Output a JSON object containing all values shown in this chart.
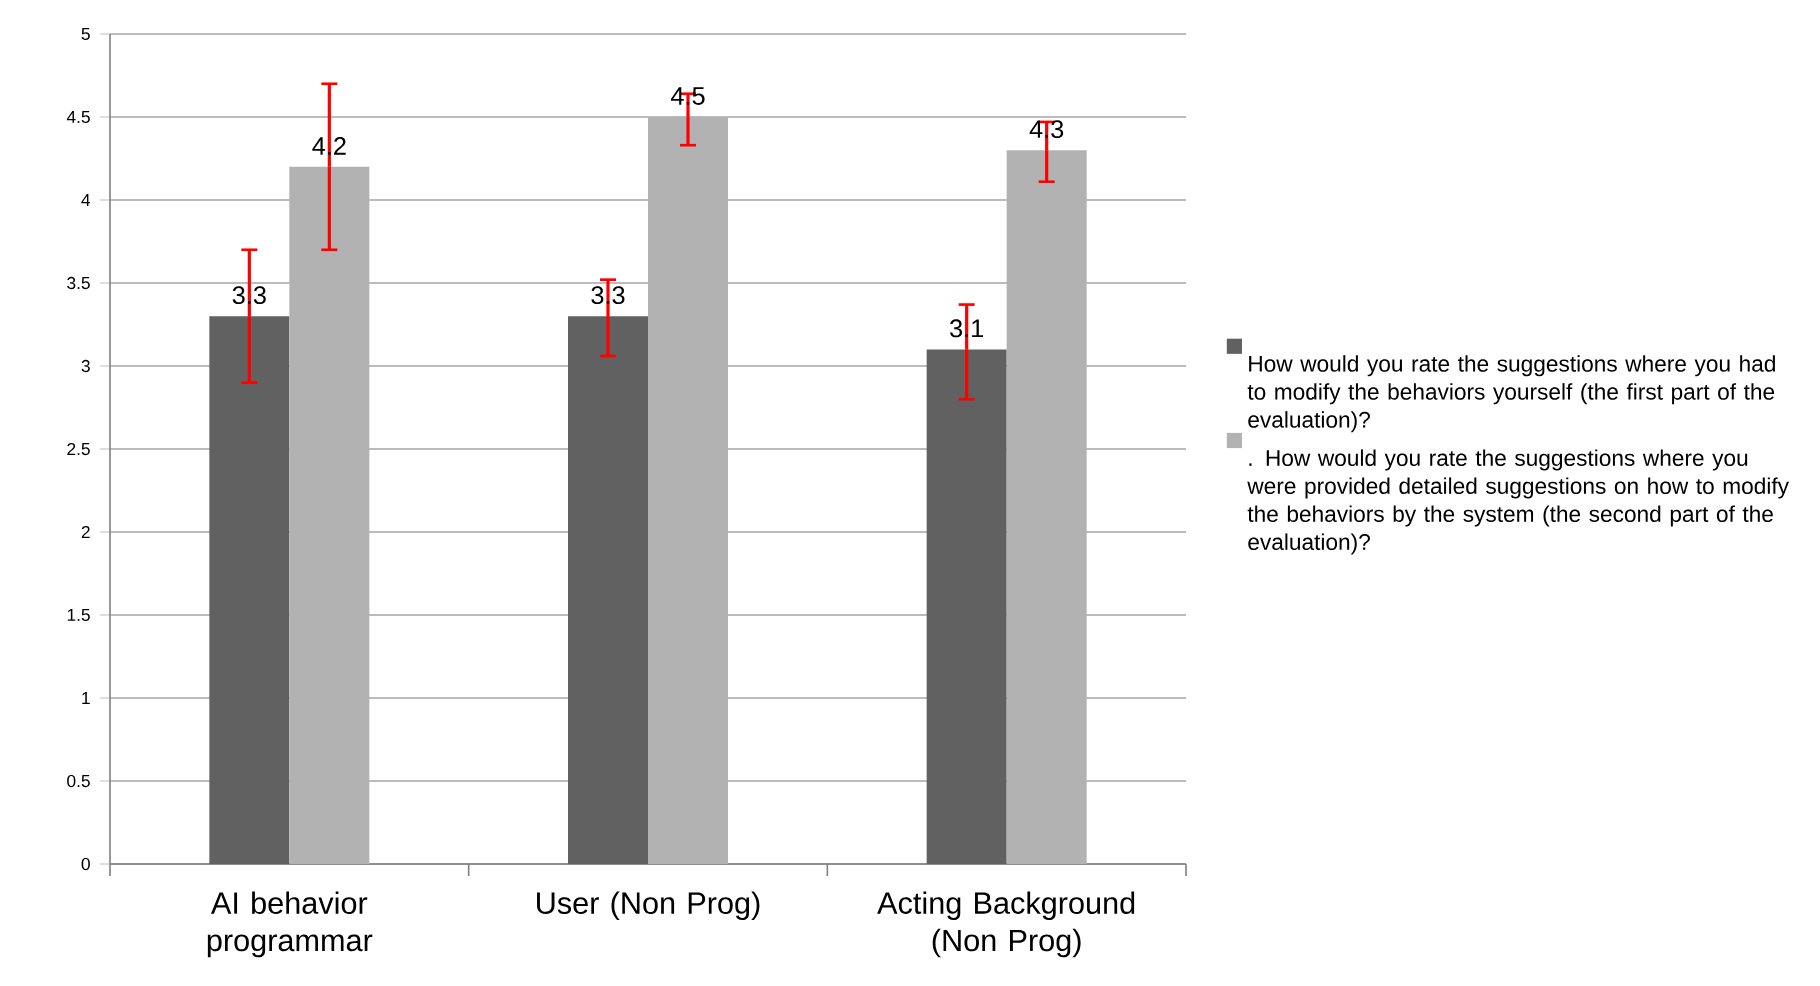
{
  "chart_data": {
    "type": "bar",
    "categories": [
      "AI behavior programmar",
      "User (Non Prog)",
      "Acting Background (Non Prog)"
    ],
    "series": [
      {
        "name": "How would you rate the suggestions where you had to modify the behaviors yourself (the first part of the evaluation)?",
        "color": "#616161",
        "values": [
          3.3,
          3.3,
          3.1
        ],
        "errors": [
          [
            2.9,
            3.7
          ],
          [
            3.06,
            3.52
          ],
          [
            2.8,
            3.37
          ]
        ]
      },
      {
        "name": ". How would you rate the suggestions where you were provided detailed suggestions on how to modify the behaviors by the system (the second part of the evaluation)?",
        "color": "#b2b2b2",
        "values": [
          4.2,
          4.5,
          4.3
        ],
        "errors": [
          [
            3.7,
            4.7
          ],
          [
            4.33,
            4.64
          ],
          [
            4.11,
            4.47
          ]
        ]
      }
    ],
    "ylim": [
      0,
      5
    ],
    "yticks": [
      0,
      0.5,
      1,
      1.5,
      2,
      2.5,
      3,
      3.5,
      4,
      4.5,
      5
    ],
    "grid": "y",
    "legend": "right",
    "data_labels": true
  }
}
